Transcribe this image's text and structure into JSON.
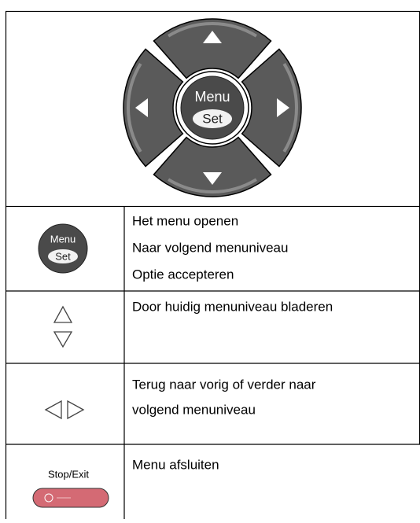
{
  "dial": {
    "menu": "Menu",
    "set": "Set"
  },
  "rows": [
    {
      "icon": {
        "menu": "Menu",
        "set": "Set"
      },
      "lines": [
        "Het menu openen",
        "Naar volgend menuniveau",
        "Optie accepteren"
      ]
    },
    {
      "lines": [
        "Door huidig menuniveau bladeren"
      ]
    },
    {
      "lines": [
        "Terug naar vorig of verder naar",
        "volgend menuniveau"
      ]
    },
    {
      "icon": {
        "label": "Stop/Exit"
      },
      "lines": [
        "Menu afsluiten"
      ]
    }
  ]
}
